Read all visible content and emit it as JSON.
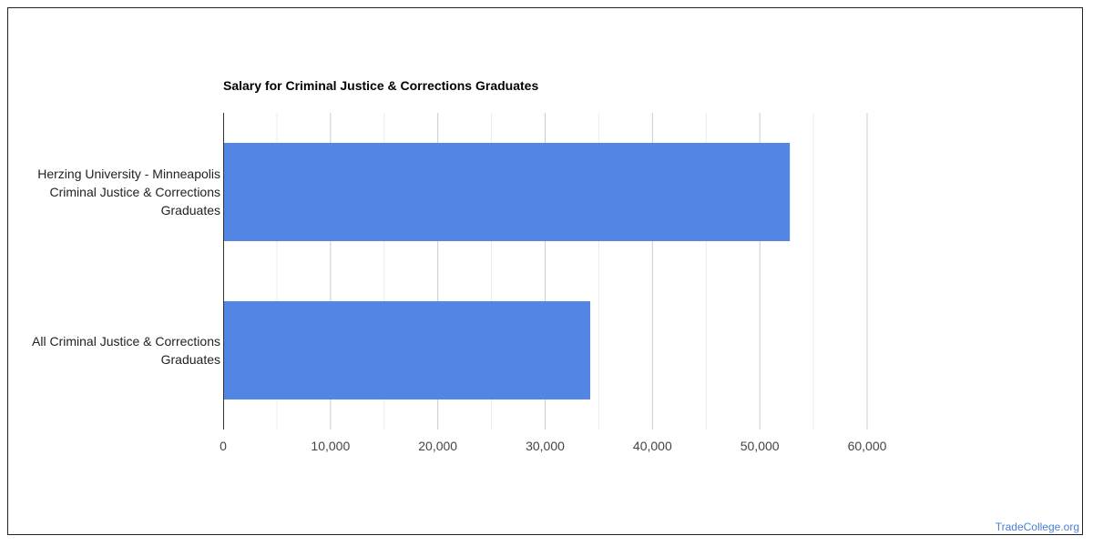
{
  "chart_data": {
    "type": "bar",
    "orientation": "horizontal",
    "title": "Salary for Criminal Justice & Corrections Graduates",
    "categories": [
      [
        "Herzing University - Minneapolis",
        "Criminal Justice & Corrections",
        "Graduates"
      ],
      [
        "All Criminal Justice & Corrections",
        "Graduates"
      ]
    ],
    "values": [
      52800,
      34200
    ],
    "xlim": [
      0,
      60000
    ],
    "x_ticks": [
      0,
      10000,
      20000,
      30000,
      40000,
      50000,
      60000
    ],
    "x_tick_labels": [
      "0",
      "10,000",
      "20,000",
      "30,000",
      "40,000",
      "50,000",
      "60,000"
    ],
    "xlabel": "",
    "ylabel": "",
    "grid": true,
    "legend": "none"
  },
  "colors": {
    "bar": "#5386e4",
    "gridline_major": "#cccccc",
    "gridline_minor": "#ebebeb",
    "axis": "#333333",
    "watermark": "#4a7fd4"
  },
  "watermark": "TradeCollege.org"
}
